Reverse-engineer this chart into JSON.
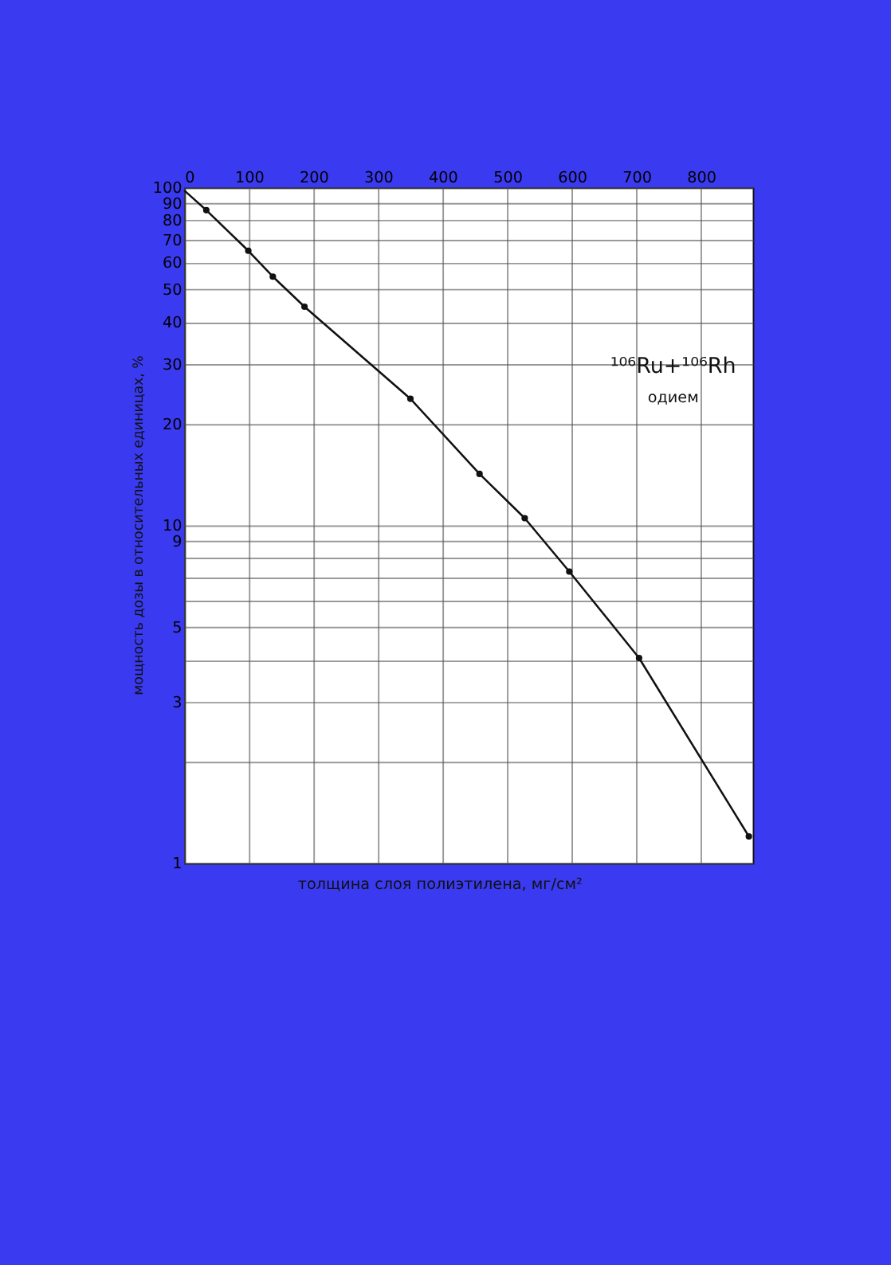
{
  "chart_data": {
    "type": "line",
    "xlabel": "толщина слоя полиэтилена, мг/см²",
    "ylabel": "мощность дозы в относительных единицах, %",
    "annotations": [
      "¹⁰⁶Ru+¹⁰⁶Rh",
      "одием"
    ],
    "series": [
      {
        "color": "#111111",
        "x": [
          0,
          34,
          99,
          137,
          186,
          350,
          457,
          527,
          596,
          704,
          874
        ],
        "values": [
          98,
          85.7,
          65,
          54.5,
          44.4,
          23.7,
          14.2,
          10.5,
          7.3,
          4.05,
          1.2
        ],
        "line_style": "solid"
      },
      {
        "type": "scatter",
        "color": "#111111",
        "x": [
          34,
          99,
          137,
          186,
          350,
          457,
          527,
          596,
          704,
          874
        ],
        "values": [
          85.7,
          65,
          54.5,
          44.4,
          23.7,
          14.2,
          10.5,
          7.3,
          4.05,
          1.2
        ],
        "marker": "circle"
      }
    ],
    "log": "y",
    "xlim": [
      0,
      880
    ],
    "ylim": [
      1,
      100
    ],
    "xticks": [
      0,
      100,
      200,
      300,
      400,
      500,
      600,
      700,
      800
    ],
    "yticks": [
      1,
      {
        "value": 2,
        "label": null
      },
      3,
      {
        "value": 4,
        "label": null
      },
      5,
      {
        "value": 6,
        "label": null
      },
      {
        "value": 7,
        "label": null
      },
      {
        "value": 8,
        "label": null
      },
      9,
      10,
      20,
      30,
      40,
      50,
      60,
      70,
      80,
      90,
      100
    ],
    "grid": true
  }
}
